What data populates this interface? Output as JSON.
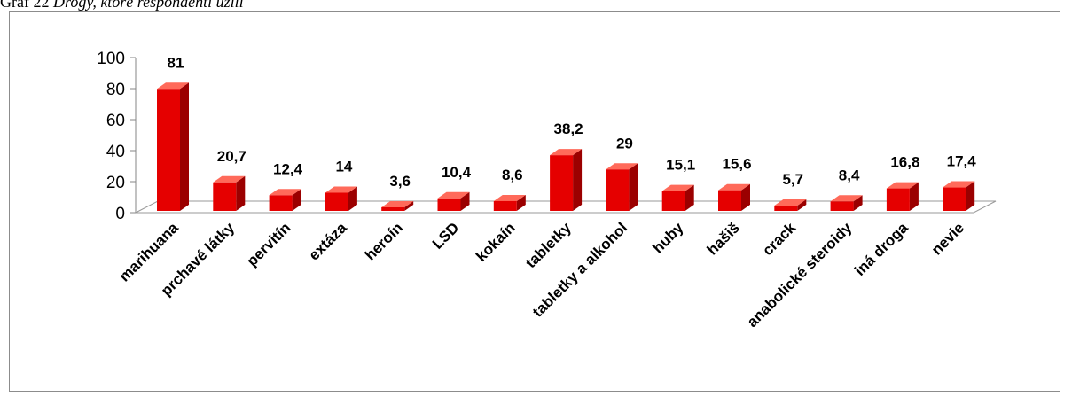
{
  "caption": {
    "label": "Graf 22",
    "title": "Drogy, ktoré respondenti užili"
  },
  "chart_data": {
    "type": "bar",
    "title": "",
    "xlabel": "",
    "ylabel": "",
    "ylim": [
      0,
      100
    ],
    "yticks": [
      0,
      20,
      40,
      60,
      80,
      100
    ],
    "grid": false,
    "legend": "none",
    "bar_color": "#e50000",
    "categories": [
      "marihuana",
      "prchavé látky",
      "pervitín",
      "extáza",
      "heroín",
      "LSD",
      "kokaín",
      "tabletky",
      "tabletky a alkohol",
      "huby",
      "hašiš",
      "crack",
      "anabolické steroidy",
      "iná droga",
      "nevie"
    ],
    "values": [
      81,
      20.7,
      12.4,
      14,
      3.6,
      10.4,
      8.6,
      38.2,
      29,
      15.1,
      15.6,
      5.7,
      8.4,
      16.8,
      17.4
    ],
    "value_labels": [
      "81",
      "20,7",
      "12,4",
      "14",
      "3,6",
      "10,4",
      "8,6",
      "38,2",
      "29",
      "15,1",
      "15,6",
      "5,7",
      "8,4",
      "16,8",
      "17,4"
    ]
  }
}
